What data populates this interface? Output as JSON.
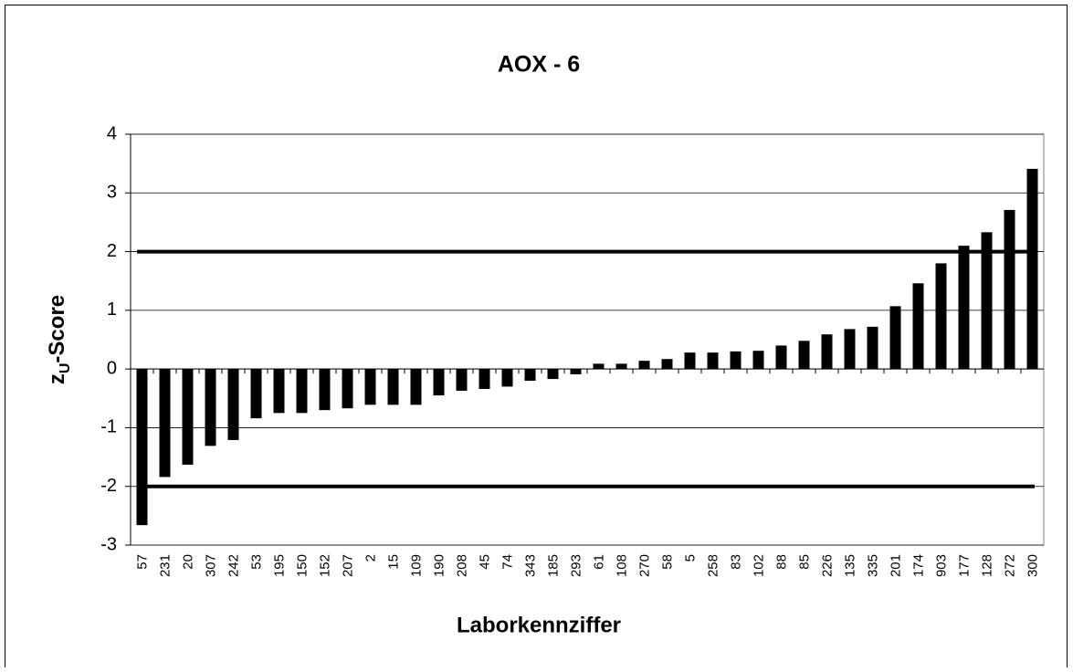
{
  "chart_data": {
    "type": "bar",
    "title": "AOX - 6",
    "y_label": [
      "z",
      "U",
      "-Score"
    ],
    "x_label": "Laborkennziffer",
    "categories": [
      "57",
      "231",
      "20",
      "307",
      "242",
      "53",
      "195",
      "150",
      "152",
      "207",
      "2",
      "15",
      "109",
      "190",
      "208",
      "45",
      "74",
      "343",
      "185",
      "293",
      "61",
      "108",
      "270",
      "58",
      "5",
      "258",
      "83",
      "102",
      "88",
      "85",
      "226",
      "135",
      "335",
      "201",
      "174",
      "903",
      "177",
      "128",
      "272",
      "300"
    ],
    "values": [
      -2.66,
      -1.84,
      -1.63,
      -1.31,
      -1.21,
      -0.84,
      -0.75,
      -0.75,
      -0.7,
      -0.67,
      -0.61,
      -0.61,
      -0.61,
      -0.45,
      -0.37,
      -0.34,
      -0.3,
      -0.2,
      -0.17,
      -0.09,
      0.09,
      0.09,
      0.14,
      0.17,
      0.28,
      0.28,
      0.3,
      0.31,
      0.4,
      0.48,
      0.59,
      0.68,
      0.72,
      1.07,
      1.46,
      1.8,
      2.1,
      2.33,
      2.71,
      3.41
    ],
    "color": "#000000",
    "ylim": [
      -3,
      4
    ],
    "yticks": [
      -3,
      -2,
      -1,
      0,
      1,
      2,
      3,
      4
    ],
    "grid": true,
    "reference_lines": [
      2,
      -2
    ]
  }
}
